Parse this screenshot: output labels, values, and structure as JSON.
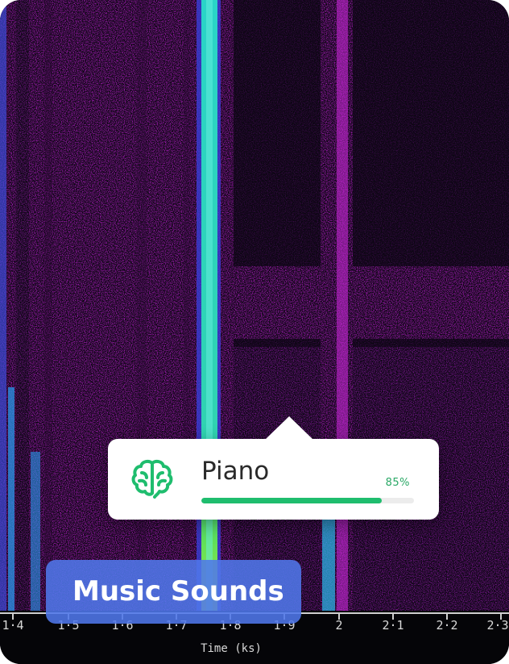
{
  "spectrogram": {
    "x_axis": {
      "title": "Time (ks)",
      "ticks": [
        "1·4",
        "1·5",
        "1·6",
        "1·7",
        "1·8",
        "1·9",
        "2",
        "2·1",
        "2·2",
        "2·3"
      ]
    },
    "colors": {
      "background": "#0a0a12",
      "magenta": "#c21fd6",
      "cyan": "#2ad4c8",
      "blue": "#3a4bd8",
      "green": "#49d66a"
    }
  },
  "detection": {
    "icon": "brain-icon",
    "label": "Piano",
    "confidence_text": "85%",
    "confidence": 0.85,
    "accent_color": "#1fbd6e"
  },
  "category": {
    "label": "Music Sounds",
    "color": "#5078eb"
  }
}
